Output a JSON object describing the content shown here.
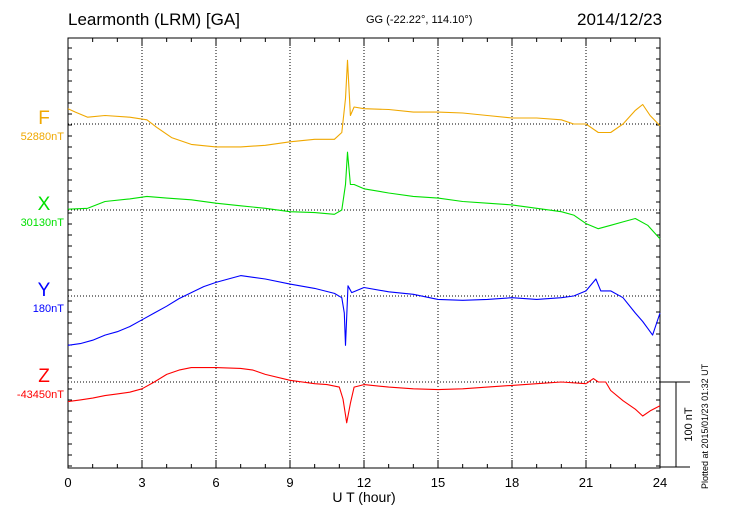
{
  "header": {
    "station": "Learmonth (LRM)  [GA]",
    "coords": "GG (-22.22°, 114.10°)",
    "date": "2014/12/23"
  },
  "plotted_note": "Plotted at 2015/01/23 01:32 UT",
  "chart_data": {
    "type": "line",
    "title": "Learmonth (LRM)  [GA]",
    "xlabel": "U T (hour)",
    "xlim": [
      0,
      24
    ],
    "x_ticks": [
      "0",
      "3",
      "6",
      "9",
      "12",
      "15",
      "18",
      "21",
      "24"
    ],
    "grid": true,
    "scale_bar_label": "100 nT",
    "scale_bar_nT": 100,
    "series": [
      {
        "name": "F",
        "baseline_label": "52880nT",
        "baseline_nT": 52880,
        "color": "#f0a800",
        "x": [
          0,
          0.3,
          0.8,
          1.5,
          2.5,
          3.2,
          3.6,
          4.2,
          5,
          6,
          7,
          8,
          9,
          10,
          10.8,
          11.1,
          11.25,
          11.33,
          11.45,
          11.6,
          12,
          13,
          14,
          15,
          16,
          17,
          18,
          19,
          20,
          20.5,
          21,
          21.5,
          22,
          22.5,
          23,
          23.3,
          23.6,
          24
        ],
        "y": [
          52898,
          52894,
          52888,
          52890,
          52888,
          52885,
          52876,
          52864,
          52856,
          52853,
          52853,
          52855,
          52859,
          52862,
          52862,
          52870,
          52910,
          52955,
          52890,
          52900,
          52898,
          52897,
          52894,
          52894,
          52893,
          52890,
          52887,
          52887,
          52885,
          52880,
          52880,
          52870,
          52870,
          52880,
          52896,
          52903,
          52890,
          52878
        ]
      },
      {
        "name": "X",
        "baseline_label": "30130nT",
        "baseline_nT": 30130,
        "color": "#00e000",
        "x": [
          0,
          0.8,
          1.5,
          2.5,
          3.2,
          4,
          5,
          6,
          7,
          8,
          9,
          10,
          10.8,
          11.1,
          11.25,
          11.33,
          11.45,
          11.6,
          12,
          13,
          14,
          15,
          16,
          17,
          18,
          19,
          20,
          20.5,
          21,
          21.5,
          22,
          22.5,
          23,
          23.5,
          24
        ],
        "y": [
          30131,
          30132,
          30140,
          30143,
          30146,
          30144,
          30142,
          30138,
          30135,
          30132,
          30128,
          30127,
          30125,
          30130,
          30160,
          30198,
          30160,
          30160,
          30155,
          30150,
          30146,
          30144,
          30140,
          30138,
          30136,
          30132,
          30128,
          30124,
          30114,
          30108,
          30112,
          30116,
          30120,
          30112,
          30096
        ]
      },
      {
        "name": "Y",
        "baseline_label": "180nT",
        "baseline_nT": 180,
        "color": "#0000ff",
        "x": [
          0,
          0.5,
          1,
          1.5,
          2,
          2.5,
          3,
          3.5,
          4,
          4.5,
          5,
          5.5,
          6,
          6.5,
          7,
          7.5,
          8,
          9,
          10,
          10.8,
          11.1,
          11.2,
          11.25,
          11.35,
          11.5,
          12,
          13,
          14,
          15,
          16,
          17,
          18,
          19,
          20,
          20.5,
          21,
          21.4,
          21.6,
          22,
          22.5,
          23,
          23.3,
          23.5,
          23.7,
          24
        ],
        "y": [
          122,
          124,
          128,
          134,
          138,
          144,
          152,
          160,
          168,
          177,
          184,
          191,
          196,
          200,
          204,
          202,
          200,
          194,
          189,
          183,
          178,
          160,
          122,
          192,
          184,
          190,
          185,
          182,
          176,
          175,
          176,
          178,
          176,
          178,
          180,
          186,
          200,
          186,
          186,
          178,
          160,
          150,
          142,
          134,
          160
        ]
      },
      {
        "name": "Z",
        "baseline_label": "-43450nT",
        "baseline_nT": -43450,
        "color": "#ff0000",
        "x": [
          0,
          0.5,
          1,
          1.5,
          2,
          2.5,
          3,
          3.5,
          4,
          4.5,
          5,
          6,
          7,
          7.5,
          8,
          9,
          10,
          10.5,
          11,
          11.15,
          11.3,
          11.45,
          11.6,
          12,
          13,
          14,
          15,
          16,
          17,
          18,
          19,
          20,
          21,
          21.3,
          21.5,
          21.8,
          22,
          22.5,
          23,
          23.3,
          23.6,
          24
        ],
        "y": [
          -43473,
          -43471,
          -43469,
          -43466,
          -43464,
          -43462,
          -43458,
          -43450,
          -43441,
          -43436,
          -43433,
          -43433,
          -43434,
          -43436,
          -43441,
          -43448,
          -43452,
          -43453,
          -43456,
          -43470,
          -43498,
          -43475,
          -43456,
          -43453,
          -43456,
          -43458,
          -43459,
          -43458,
          -43456,
          -43454,
          -43452,
          -43450,
          -43452,
          -43446,
          -43450,
          -43450,
          -43460,
          -43472,
          -43482,
          -43490,
          -43484,
          -43478
        ]
      }
    ]
  }
}
